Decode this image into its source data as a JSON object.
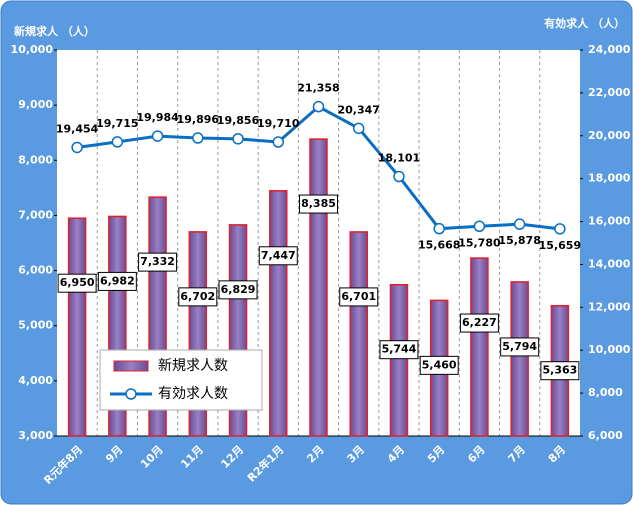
{
  "chart_data": {
    "type": "bar_line",
    "y_label": "新規求人 （人）",
    "y2_label": "有効求人 （人）",
    "categories": [
      "R元年8月",
      "9月",
      "10月",
      "11月",
      "12月",
      "R2年1月",
      "2月",
      "3月",
      "4月",
      "5月",
      "6月",
      "7月",
      "8月"
    ],
    "series": [
      {
        "name": "新規求人数",
        "type": "bar",
        "color": "#7d5fa6",
        "edge_color": "#e0202a",
        "values": [
          6950,
          6982,
          7332,
          6702,
          6829,
          7447,
          8385,
          6701,
          5744,
          5460,
          6227,
          5794,
          5363
        ],
        "value_labels": [
          "6,950",
          "6,982",
          "7,332",
          "6,702",
          "6,829",
          "7,447",
          "8,385",
          "6,701",
          "5,744",
          "5,460",
          "6,227",
          "5,794",
          "5,363"
        ]
      },
      {
        "name": "有効求人数",
        "type": "line",
        "axis": "y2",
        "color": "#0a6fc2",
        "values": [
          19454,
          19715,
          19984,
          19896,
          19856,
          19710,
          21358,
          20347,
          18101,
          15668,
          15780,
          15878,
          15659
        ],
        "value_labels": [
          "19,454",
          "19,715",
          "19,984",
          "19,896",
          "19,856",
          "19,710",
          "21,358",
          "20,347",
          "18,101",
          "15,668",
          "15,780",
          "15,878",
          "15,659"
        ]
      }
    ],
    "ylim": [
      3000,
      10000
    ],
    "yticks": [
      {
        "value": 3000,
        "label": "3,000"
      },
      {
        "value": 4000,
        "label": "4,000"
      },
      {
        "value": 5000,
        "label": "5,000"
      },
      {
        "value": 6000,
        "label": "6,000"
      },
      {
        "value": 7000,
        "label": "7,000"
      },
      {
        "value": 8000,
        "label": "8,000"
      },
      {
        "value": 9000,
        "label": "9,000"
      },
      {
        "value": 10000,
        "label": "10,000"
      }
    ],
    "y2lim": [
      6000,
      24000
    ],
    "y2ticks": [
      {
        "value": 6000,
        "label": "6,000"
      },
      {
        "value": 8000,
        "label": "8,000"
      },
      {
        "value": 10000,
        "label": "10,000"
      },
      {
        "value": 12000,
        "label": "12,000"
      },
      {
        "value": 14000,
        "label": "14,000"
      },
      {
        "value": 16000,
        "label": "16,000"
      },
      {
        "value": 18000,
        "label": "18,000"
      },
      {
        "value": 20000,
        "label": "20,000"
      },
      {
        "value": 22000,
        "label": "22,000"
      },
      {
        "value": 24000,
        "label": "24,000"
      }
    ],
    "legend": "lower left"
  }
}
